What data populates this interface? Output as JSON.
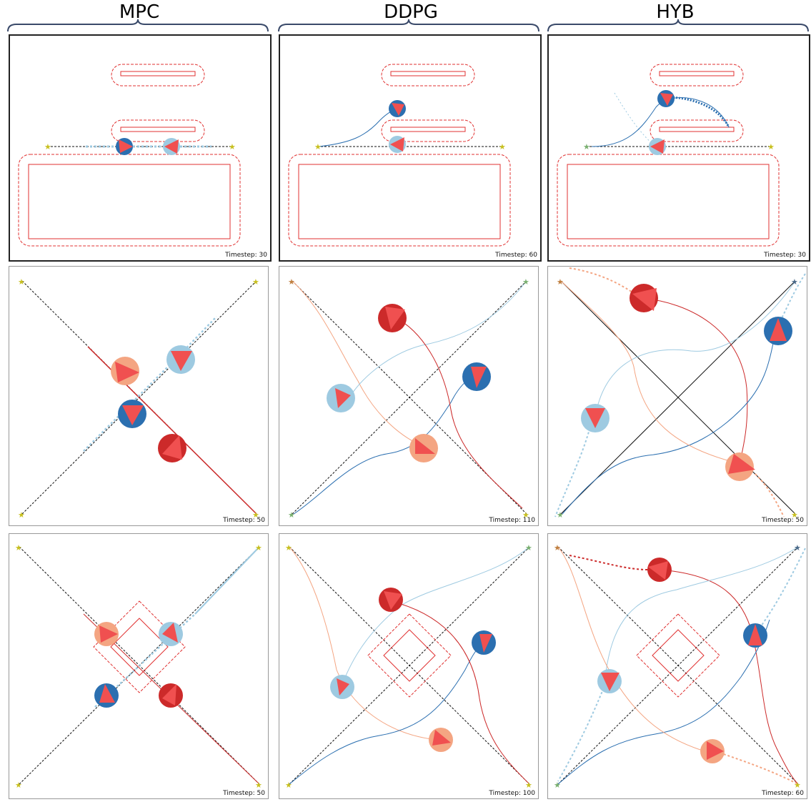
{
  "columns": [
    {
      "title": "MPC"
    },
    {
      "title": "DDPG"
    },
    {
      "title": "HYB"
    }
  ],
  "rows": [
    {
      "scenario": "corridor",
      "timesteps": [
        "Timestep: 30",
        "Timestep: 60",
        "Timestep: 30"
      ]
    },
    {
      "scenario": "crossing",
      "timesteps": [
        "Timestep: 50",
        "Timestep: 110",
        "Timestep: 50"
      ]
    },
    {
      "scenario": "crossing-obstacle",
      "timesteps": [
        "Timestep: 50",
        "Timestep: 100",
        "Timestep: 60"
      ]
    }
  ],
  "colors": {
    "dark_blue": "#2b6fb0",
    "light_blue": "#9ecae1",
    "dark_red": "#cc2a2a",
    "light_red": "#f4a582",
    "triangle": "#f05050",
    "obstacle": "#e03030",
    "goal_star": "#c8c020"
  }
}
